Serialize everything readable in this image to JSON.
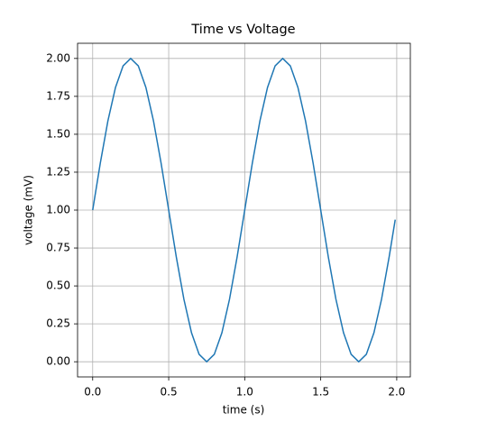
{
  "chart_data": {
    "type": "line",
    "title": "Time vs Voltage",
    "x_label": "time (s)",
    "y_label": "voltage (mV)",
    "x": [
      0,
      0.05,
      0.1,
      0.15,
      0.2,
      0.25,
      0.3,
      0.35,
      0.4,
      0.45,
      0.5,
      0.55,
      0.6,
      0.65,
      0.7,
      0.75,
      0.8,
      0.85,
      0.9,
      0.95,
      1.0,
      1.05,
      1.1,
      1.15,
      1.2,
      1.25,
      1.3,
      1.35,
      1.4,
      1.45,
      1.5,
      1.55,
      1.6,
      1.65,
      1.7,
      1.75,
      1.8,
      1.85,
      1.9,
      1.95,
      1.99
    ],
    "series": [
      {
        "color": "#1f77b4",
        "values": [
          1,
          1.309,
          1.588,
          1.809,
          1.951,
          2,
          1.951,
          1.809,
          1.588,
          1.309,
          1,
          0.691,
          0.412,
          0.191,
          0.049,
          0,
          0.049,
          0.191,
          0.412,
          0.691,
          1,
          1.309,
          1.588,
          1.809,
          1.951,
          2,
          1.951,
          1.809,
          1.588,
          1.309,
          1,
          0.691,
          0.412,
          0.191,
          0.049,
          0,
          0.049,
          0.191,
          0.412,
          0.691,
          0.937
        ]
      }
    ],
    "xlim": [
      -0.0995,
      2.0895
    ],
    "ylim": [
      -0.1,
      2.1
    ],
    "xticks": [
      {
        "value": 0,
        "label": "0.0"
      },
      0.5,
      {
        "value": 1,
        "label": "1.0"
      },
      1.5,
      {
        "value": 2,
        "label": "2.0"
      }
    ],
    "yticks": [
      {
        "value": 0,
        "label": "0.00"
      },
      0.25,
      {
        "value": 0.5,
        "label": "0.50"
      },
      0.75,
      {
        "value": 1,
        "label": "1.00"
      },
      1.25,
      {
        "value": 1.5,
        "label": "1.50"
      },
      1.75,
      {
        "value": 2,
        "label": "2.00"
      }
    ],
    "grid": true
  }
}
